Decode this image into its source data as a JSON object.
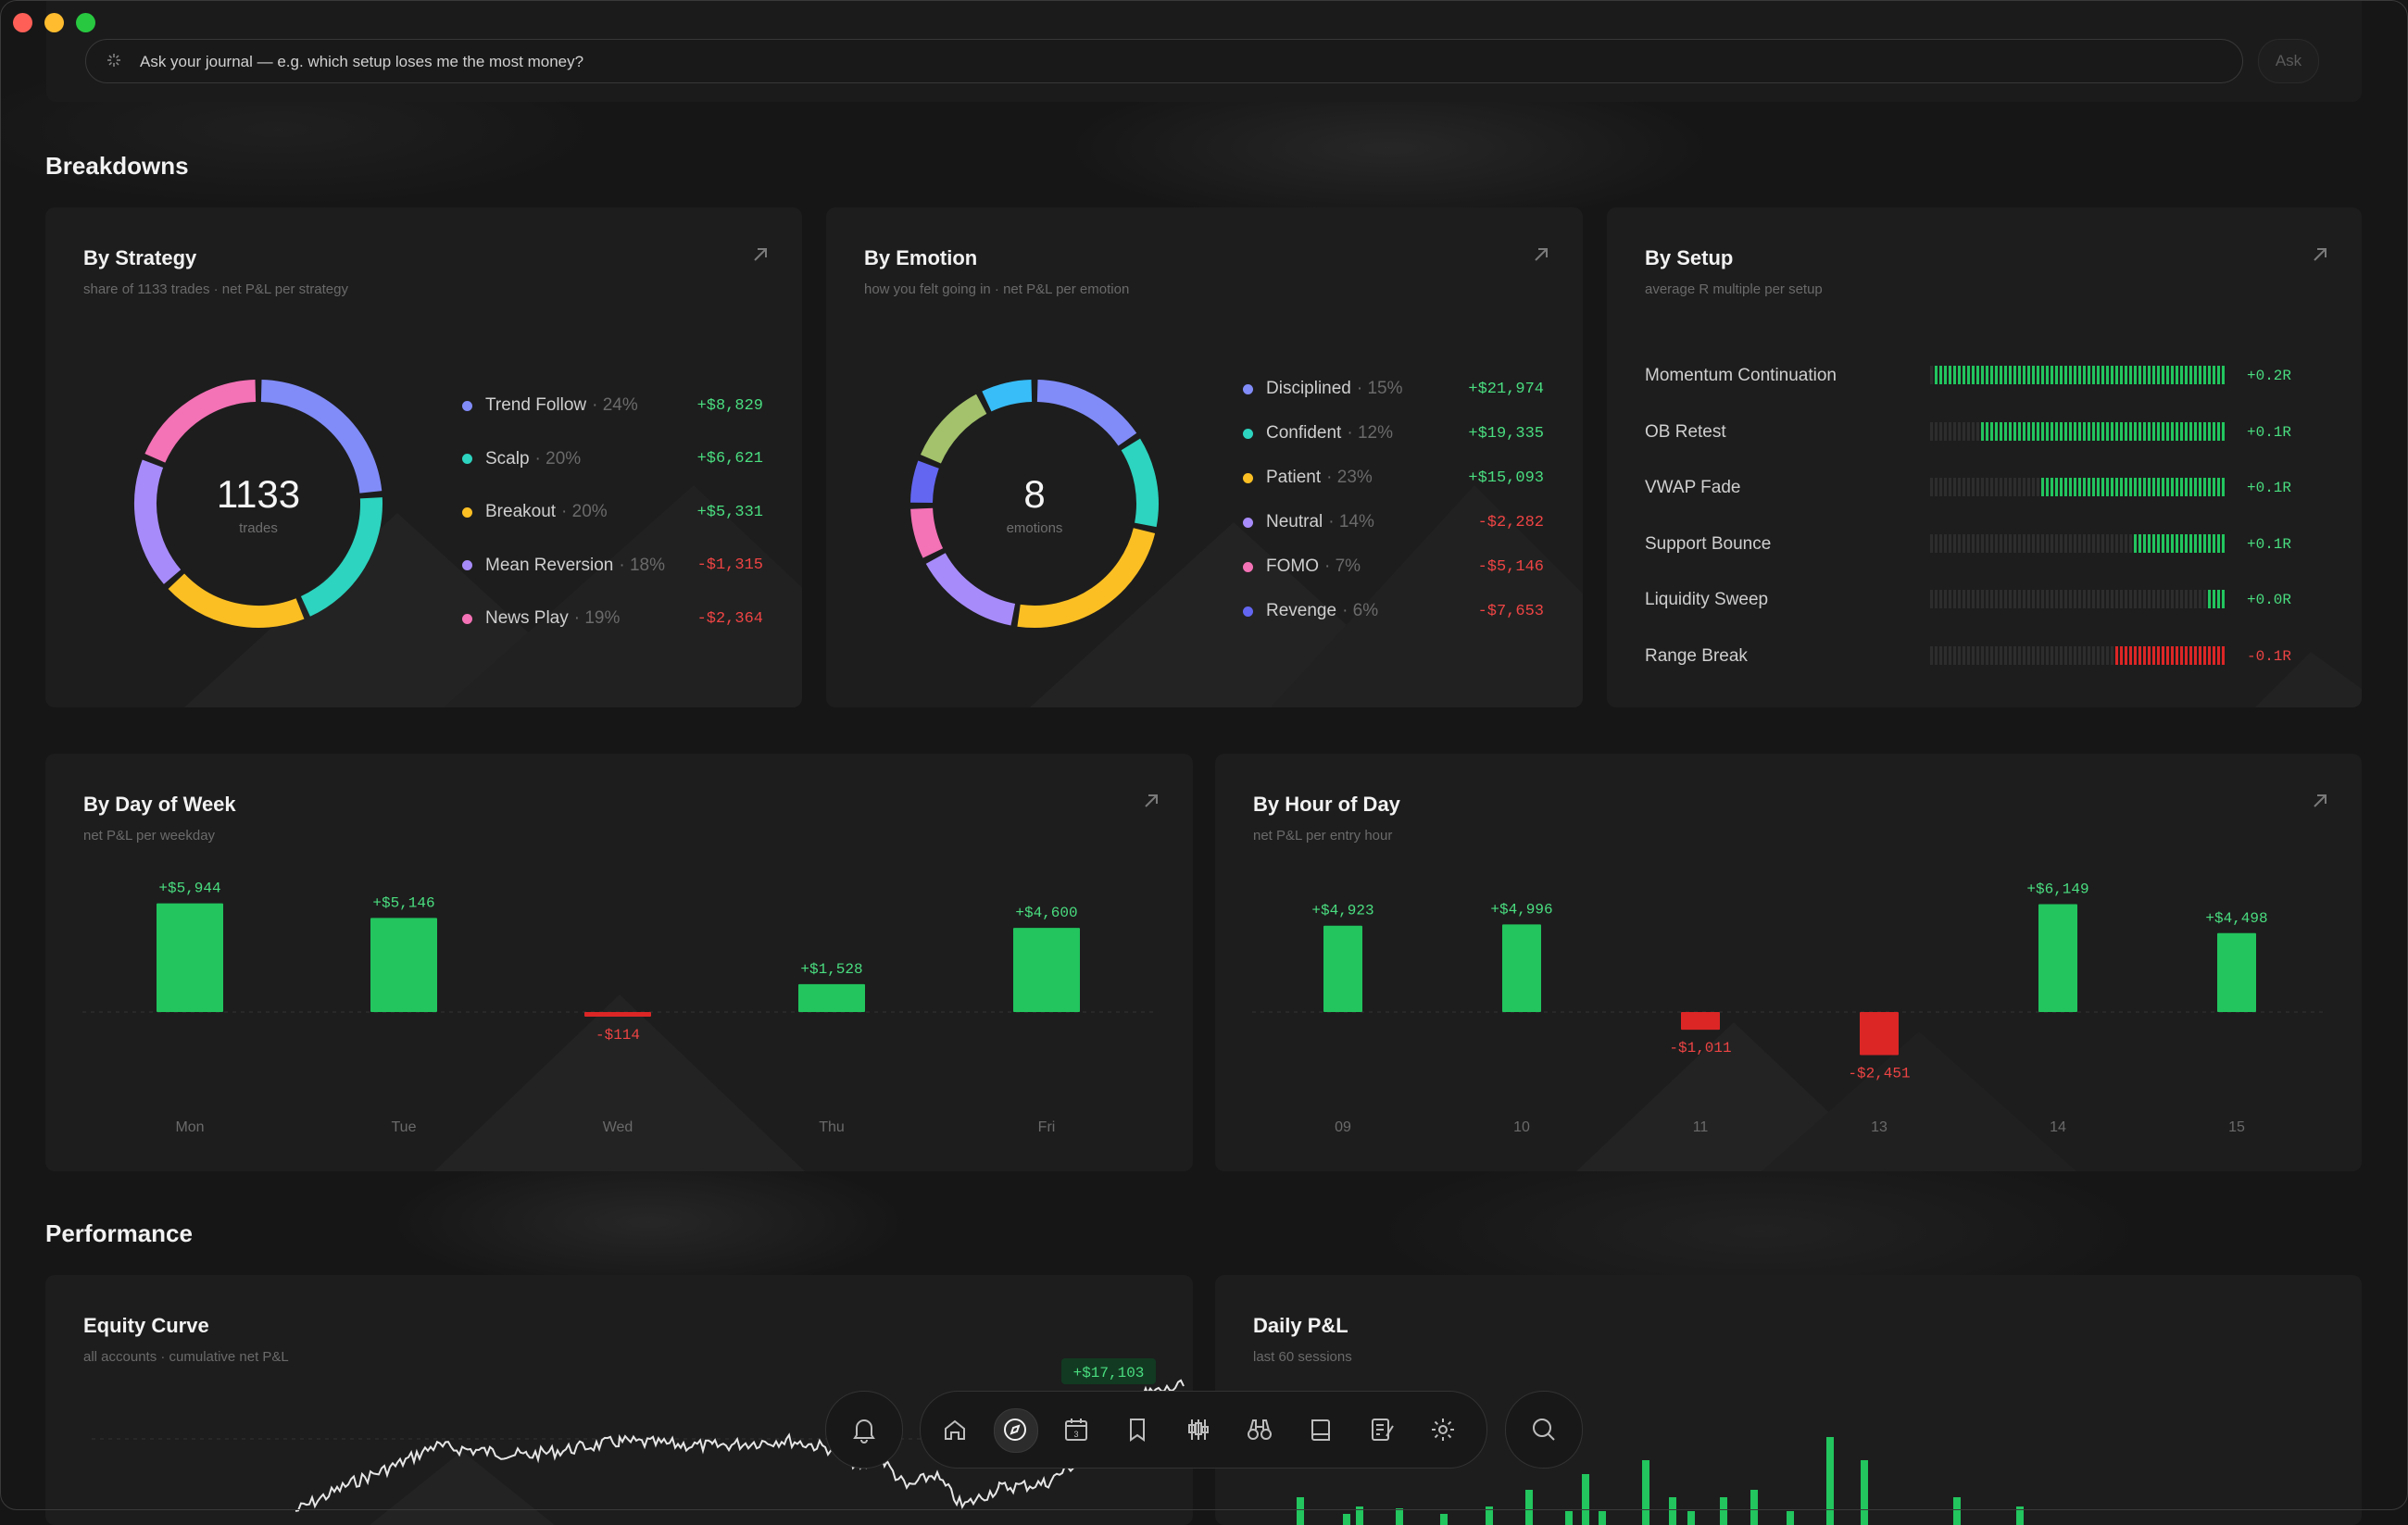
{
  "ask": {
    "placeholder": "Ask your journal — e.g. which setup loses me the most money?",
    "button": "Ask"
  },
  "sections": {
    "breakdowns": "Breakdowns",
    "performance": "Performance"
  },
  "strategy": {
    "title": "By Strategy",
    "subtitle": "share of 1133 trades · net P&L per strategy",
    "center_value": "1133",
    "center_label": "trades",
    "items": [
      {
        "name": "Trend Follow",
        "pct": "· 24%",
        "value": "+$8,829",
        "color": "#818cf8",
        "positive": true
      },
      {
        "name": "Scalp",
        "pct": "· 20%",
        "value": "+$6,621",
        "color": "#2dd4bf",
        "positive": true
      },
      {
        "name": "Breakout",
        "pct": "· 20%",
        "value": "+$5,331",
        "color": "#fbbf24",
        "positive": true
      },
      {
        "name": "Mean Reversion",
        "pct": "· 18%",
        "value": "-$1,315",
        "color": "#a78bfa",
        "positive": false
      },
      {
        "name": "News Play",
        "pct": "· 19%",
        "value": "-$2,364",
        "color": "#f472b6",
        "positive": false
      }
    ]
  },
  "emotion": {
    "title": "By Emotion",
    "subtitle": "how you felt going in · net P&L per emotion",
    "center_value": "8",
    "center_label": "emotions",
    "items": [
      {
        "name": "Disciplined",
        "pct": "· 15%",
        "value": "+$21,974",
        "color": "#818cf8",
        "positive": true
      },
      {
        "name": "Confident",
        "pct": "· 12%",
        "value": "+$19,335",
        "color": "#2dd4bf",
        "positive": true
      },
      {
        "name": "Patient",
        "pct": "· 23%",
        "value": "+$15,093",
        "color": "#fbbf24",
        "positive": true
      },
      {
        "name": "Neutral",
        "pct": "· 14%",
        "value": "-$2,282",
        "color": "#a78bfa",
        "positive": false
      },
      {
        "name": "FOMO",
        "pct": "· 7%",
        "value": "-$5,146",
        "color": "#f472b6",
        "positive": false
      },
      {
        "name": "Revenge",
        "pct": "· 6%",
        "value": "-$7,653",
        "color": "#6366f1",
        "positive": false
      }
    ],
    "extra_segments": [
      {
        "color": "#a3c26b",
        "pct": 11
      },
      {
        "color": "#38bdf8",
        "pct": 7
      }
    ]
  },
  "setup": {
    "title": "By Setup",
    "subtitle": "average R multiple per setup",
    "items": [
      {
        "name": "Momentum Continuation",
        "value": "+0.2R",
        "lit": 0.98,
        "positive": true
      },
      {
        "name": "OB Retest",
        "value": "+0.1R",
        "lit": 0.83,
        "positive": true
      },
      {
        "name": "VWAP Fade",
        "value": "+0.1R",
        "lit": 0.63,
        "positive": true
      },
      {
        "name": "Support Bounce",
        "value": "+0.1R",
        "lit": 0.32,
        "positive": true
      },
      {
        "name": "Liquidity Sweep",
        "value": "+0.0R",
        "lit": 0.06,
        "positive": true
      },
      {
        "name": "Range Break",
        "value": "-0.1R",
        "lit": 0.38,
        "positive": false
      }
    ]
  },
  "dow": {
    "title": "By Day of Week",
    "subtitle": "net P&L per weekday",
    "chart_data": {
      "type": "bar",
      "categories": [
        "Mon",
        "Tue",
        "Wed",
        "Thu",
        "Fri"
      ],
      "values": [
        5944,
        5146,
        -114,
        1528,
        4600
      ],
      "labels": [
        "+$5,944",
        "+$5,146",
        "-$114",
        "+$1,528",
        "+$4,600"
      ]
    }
  },
  "hod": {
    "title": "By Hour of Day",
    "subtitle": "net P&L per entry hour",
    "chart_data": {
      "type": "bar",
      "categories": [
        "09",
        "10",
        "11",
        "13",
        "14",
        "15"
      ],
      "values": [
        4923,
        4996,
        -1011,
        -2451,
        6149,
        4498
      ],
      "labels": [
        "+$4,923",
        "+$4,996",
        "-$1,011",
        "-$2,451",
        "+$6,149",
        "+$4,498"
      ]
    }
  },
  "equity": {
    "title": "Equity Curve",
    "subtitle": "all accounts · cumulative net P&L",
    "badge": "+$17,103"
  },
  "daily": {
    "title": "Daily P&L",
    "subtitle": "last 60 sessions"
  },
  "colors": {
    "positive": "#22c55e",
    "negative": "#dc2626",
    "accent": "#4ade80"
  },
  "dock": {
    "icons": [
      "bell-icon",
      "home-icon",
      "compass-icon",
      "calendar-icon",
      "bookmark-icon",
      "candlestick-icon",
      "binoculars-icon",
      "book-icon",
      "journal-icon",
      "gear-icon",
      "search-icon"
    ],
    "calendar_day": "3"
  }
}
